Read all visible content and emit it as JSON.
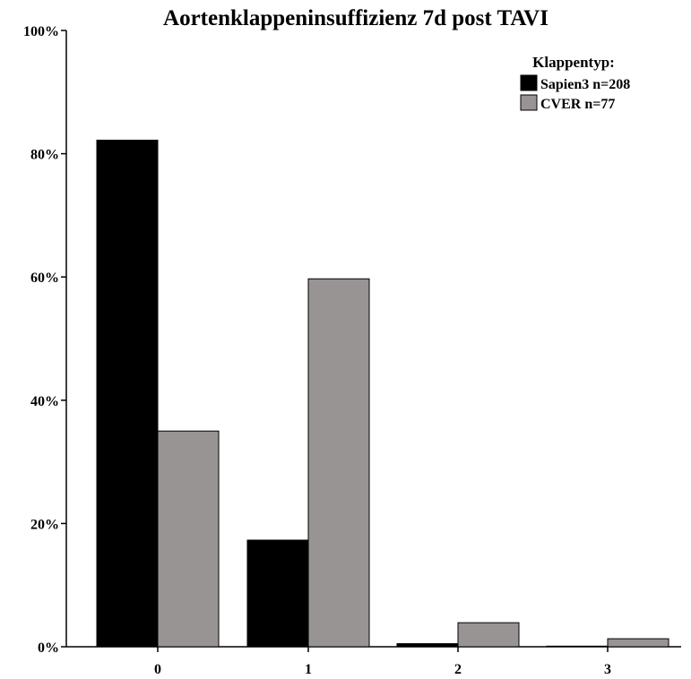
{
  "chart_data": {
    "type": "bar",
    "title": "Aortenklappeninsuffizienz 7d post TAVI",
    "categories": [
      "0",
      "1",
      "2",
      "3"
    ],
    "ylim": [
      0,
      100
    ],
    "yticks": [
      0,
      20,
      40,
      60,
      80,
      100
    ],
    "ytick_labels": [
      "0%",
      "20%",
      "40%",
      "60%",
      "80%",
      "100%"
    ],
    "grid": false,
    "legend": {
      "title": "Klappentyp:",
      "placement": "top-right"
    },
    "series": [
      {
        "name": "Sapien3 n=208",
        "color": "#000000",
        "values": [
          82.2,
          17.3,
          0.5,
          0.1
        ]
      },
      {
        "name": "CVER n=77",
        "color": "#989494",
        "values": [
          35.0,
          59.7,
          3.9,
          1.3
        ]
      }
    ]
  }
}
